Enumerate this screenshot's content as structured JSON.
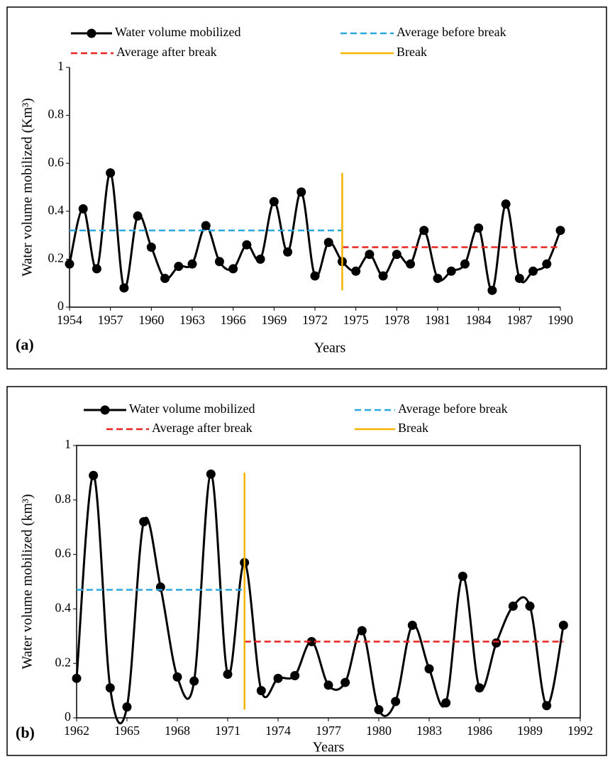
{
  "chart_data": [
    {
      "type": "line",
      "panel_label": "(a)",
      "x_label": "Years",
      "y_label": "Water volume mobilized (Km³)",
      "x": [
        1954,
        1955,
        1956,
        1957,
        1958,
        1959,
        1960,
        1961,
        1962,
        1963,
        1964,
        1965,
        1966,
        1967,
        1968,
        1969,
        1970,
        1971,
        1972,
        1973,
        1974,
        1975,
        1976,
        1977,
        1978,
        1979,
        1980,
        1981,
        1982,
        1983,
        1984,
        1985,
        1986,
        1987,
        1988,
        1989,
        1990
      ],
      "xlim": [
        1954,
        1990
      ],
      "xticks": [
        1954,
        1957,
        1960,
        1963,
        1966,
        1969,
        1972,
        1975,
        1978,
        1981,
        1984,
        1987,
        1990
      ],
      "ylim": [
        0,
        1
      ],
      "yticks": [
        0,
        0.2,
        0.4,
        0.6,
        0.8,
        1
      ],
      "series": [
        {
          "name": "Water volume mobilized",
          "color": "#000000",
          "linestyle": "solid",
          "marker": "o",
          "values": [
            0.18,
            0.41,
            0.16,
            0.56,
            0.08,
            0.38,
            0.25,
            0.12,
            0.17,
            0.18,
            0.34,
            0.19,
            0.16,
            0.26,
            0.2,
            0.44,
            0.23,
            0.48,
            0.13,
            0.27,
            0.19,
            0.15,
            0.22,
            0.13,
            0.22,
            0.18,
            0.32,
            0.12,
            0.15,
            0.18,
            0.33,
            0.07,
            0.43,
            0.12,
            0.15,
            0.18,
            0.32
          ]
        },
        {
          "name": "Average before break",
          "color": "#29a8e0",
          "linestyle": "dashed",
          "x": [
            1954,
            1974
          ],
          "values": [
            0.32,
            0.32
          ]
        },
        {
          "name": "Average after break",
          "color": "#e8231f",
          "linestyle": "dashed",
          "x": [
            1974,
            1990
          ],
          "values": [
            0.25,
            0.25
          ]
        },
        {
          "name": "Break",
          "color": "#f5b400",
          "linestyle": "solid",
          "x": [
            1974,
            1974
          ],
          "values": [
            0.07,
            0.56
          ]
        }
      ]
    },
    {
      "type": "line",
      "panel_label": "(b)",
      "x_label": "Years",
      "y_label": "Water volume mobilized (km³)",
      "x": [
        1962,
        1963,
        1964,
        1965,
        1966,
        1967,
        1968,
        1969,
        1970,
        1971,
        1972,
        1973,
        1974,
        1975,
        1976,
        1977,
        1978,
        1979,
        1980,
        1981,
        1982,
        1983,
        1984,
        1985,
        1986,
        1987,
        1988,
        1989,
        1990,
        1991
      ],
      "xlim": [
        1962,
        1992
      ],
      "xticks": [
        1962,
        1965,
        1968,
        1971,
        1974,
        1977,
        1980,
        1983,
        1986,
        1989,
        1992
      ],
      "ylim": [
        0,
        1
      ],
      "yticks": [
        0,
        0.2,
        0.4,
        0.6,
        0.8,
        1
      ],
      "series": [
        {
          "name": "Water volume mobilized",
          "color": "#000000",
          "linestyle": "solid",
          "marker": "o",
          "values": [
            0.145,
            0.89,
            0.11,
            0.04,
            0.72,
            0.48,
            0.15,
            0.135,
            0.895,
            0.16,
            0.57,
            0.1,
            0.145,
            0.155,
            0.28,
            0.12,
            0.13,
            0.32,
            0.03,
            0.06,
            0.34,
            0.18,
            0.055,
            0.52,
            0.11,
            0.275,
            0.41,
            0.41,
            0.045,
            0.34
          ]
        },
        {
          "name": "Average before break",
          "color": "#29a8e0",
          "linestyle": "dashed",
          "x": [
            1962,
            1972
          ],
          "values": [
            0.47,
            0.47
          ]
        },
        {
          "name": "Average after break",
          "color": "#e8231f",
          "linestyle": "dashed",
          "x": [
            1972,
            1991
          ],
          "values": [
            0.28,
            0.28
          ]
        },
        {
          "name": "Break",
          "color": "#f5b400",
          "linestyle": "solid",
          "x": [
            1972,
            1972
          ],
          "values": [
            0.03,
            0.9
          ]
        }
      ]
    }
  ]
}
